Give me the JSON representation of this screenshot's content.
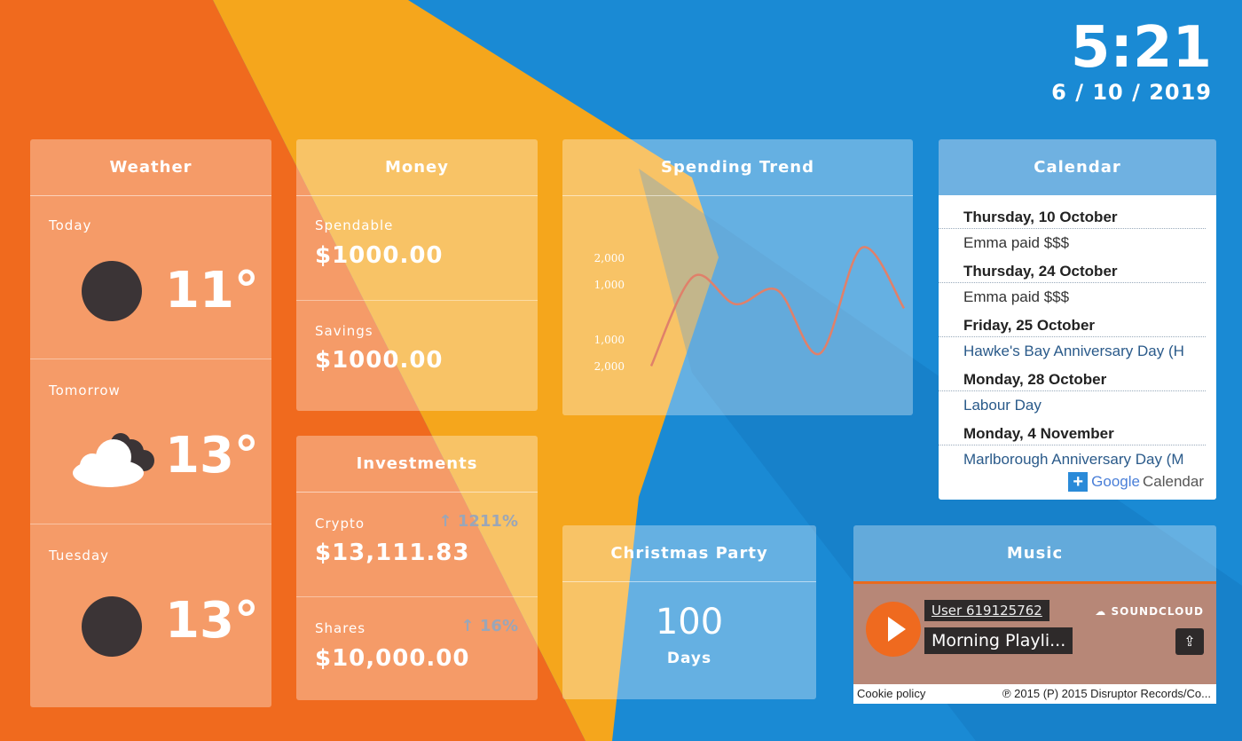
{
  "clock": {
    "time": "5:21",
    "date": "6 / 10 / 2019"
  },
  "weather": {
    "title": "Weather",
    "days": [
      {
        "label": "Today",
        "temp": "11°",
        "icon": "moon-icon"
      },
      {
        "label": "Tomorrow",
        "temp": "13°",
        "icon": "cloud-icon"
      },
      {
        "label": "Tuesday",
        "temp": "13°",
        "icon": "moon-icon"
      }
    ]
  },
  "money": {
    "title": "Money",
    "spendable_label": "Spendable",
    "spendable_value": "$1000.00",
    "savings_label": "Savings",
    "savings_value": "$1000.00"
  },
  "investments": {
    "title": "Investments",
    "crypto_label": "Crypto",
    "crypto_value": "$13,111.83",
    "crypto_change": "1211%",
    "shares_label": "Shares",
    "shares_value": "$10,000.00",
    "shares_change": "16%"
  },
  "spending": {
    "title": "Spending Trend"
  },
  "chart_data": {
    "type": "line",
    "title": "Spending Trend",
    "ytick_labels": [
      "2,000",
      "1,000",
      "1,000",
      "2,000"
    ],
    "series": [
      {
        "values": [
          -1950,
          1300,
          300,
          800,
          -1500,
          2350,
          150
        ]
      }
    ],
    "line_color": "#e0806a"
  },
  "countdown": {
    "title": "Christmas Party",
    "value": "100",
    "unit": "Days"
  },
  "calendar": {
    "title": "Calendar",
    "entries": [
      {
        "day": "Thursday, 10 October",
        "event": "Emma paid $$$",
        "style": "dark"
      },
      {
        "day": "Thursday, 24 October",
        "event": "Emma paid $$$",
        "style": "dark"
      },
      {
        "day": "Friday, 25 October",
        "event": "Hawke's Bay Anniversary Day (H",
        "style": "blue"
      },
      {
        "day": "Monday, 28 October",
        "event": "Labour Day",
        "style": "blue"
      },
      {
        "day": "Monday, 4 November",
        "event": "Marlborough Anniversary Day (M",
        "style": "blue"
      }
    ],
    "badge_google": "Google",
    "badge_calendar": "Calendar"
  },
  "music": {
    "title": "Music",
    "user": "User 619125762",
    "track": "Morning Playli...",
    "brand": "SOUNDCLOUD",
    "cookie": "Cookie policy",
    "copyright": "℗ 2015 (P) 2015 Disruptor Records/Co..."
  }
}
